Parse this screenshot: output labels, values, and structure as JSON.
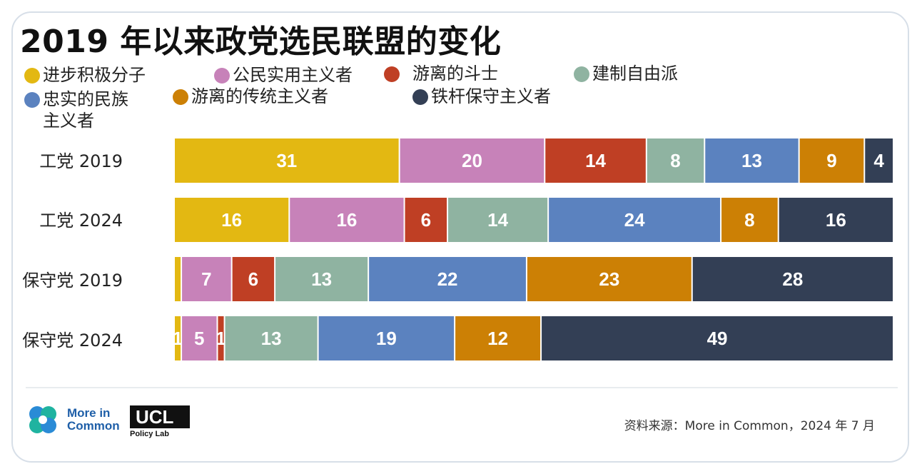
{
  "title": "2019 年以来政党选民联盟的变化",
  "legend": [
    {
      "label": "进步积极分子",
      "color": "#e3b812"
    },
    {
      "label": "公民实用主义者",
      "color": "#c782b9"
    },
    {
      "label": "游离的斗士",
      "color": "#bf3f24"
    },
    {
      "label": "建制自由派",
      "color": "#8fb3a1"
    },
    {
      "label": "忠实的民族主义者",
      "color": "#5b82bf"
    },
    {
      "label": "游离的传统主义者",
      "color": "#cc8005"
    },
    {
      "label": "铁杆保守主义者",
      "color": "#333f55"
    }
  ],
  "chart_data": {
    "type": "bar",
    "orientation": "horizontal",
    "stacked": true,
    "categories": [
      "工党 2019",
      "工党 2024",
      "保守党 2019",
      "保守党 2024"
    ],
    "series": [
      {
        "name": "进步积极分子",
        "values": [
          31,
          16,
          1,
          1
        ]
      },
      {
        "name": "公民实用主义者",
        "values": [
          20,
          16,
          7,
          5
        ]
      },
      {
        "name": "游离的斗士",
        "values": [
          14,
          6,
          6,
          1
        ]
      },
      {
        "name": "建制自由派",
        "values": [
          8,
          14,
          13,
          13
        ]
      },
      {
        "name": "忠实的民族主义者",
        "values": [
          13,
          24,
          22,
          19
        ]
      },
      {
        "name": "游离的传统主义者",
        "values": [
          9,
          8,
          23,
          12
        ]
      },
      {
        "name": "铁杆保守主义者",
        "values": [
          4,
          16,
          28,
          49
        ]
      }
    ],
    "data_labels": [
      [
        "31",
        "20",
        "14",
        "8",
        "13",
        "9",
        "4"
      ],
      [
        "16",
        "16",
        "6",
        "14",
        "24",
        "8",
        "16"
      ],
      [
        "",
        "7",
        "6",
        "13",
        "22",
        "23",
        "28"
      ],
      [
        "1",
        "5",
        "1",
        "13",
        "19",
        "12",
        "49"
      ]
    ],
    "legend_position": "top",
    "grid": false
  },
  "footer": {
    "logo1_line1": "More in",
    "logo1_line2": "Common",
    "logo2": "UCL",
    "logo2_sub": "Policy Lab",
    "source": "资料来源：More in Common，2024 年 7 月"
  }
}
